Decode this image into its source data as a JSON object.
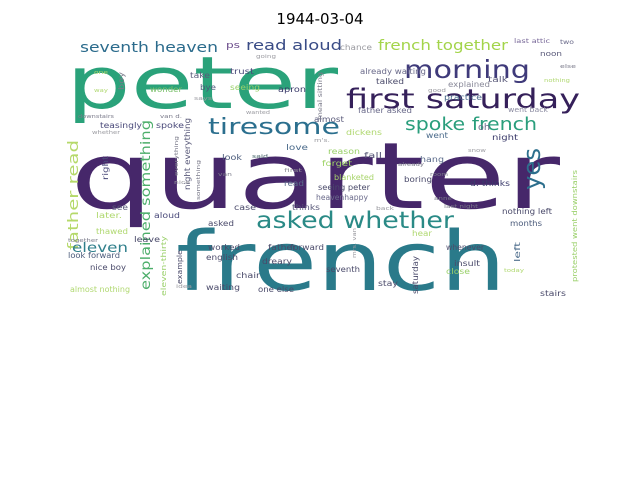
{
  "title": "1944-03-04",
  "words": [
    {
      "text": "quarter",
      "color": "#46276a"
    },
    {
      "text": "peter",
      "color": "#2aa27a"
    },
    {
      "text": "french",
      "color": "#2a7a8a"
    },
    {
      "text": "first saturday",
      "color": "#35205a"
    },
    {
      "text": "morning",
      "color": "#3f3a7a"
    },
    {
      "text": "tiresome",
      "color": "#2b6f8e"
    },
    {
      "text": "spoke french",
      "color": "#2a9e7c"
    },
    {
      "text": "asked whether",
      "color": "#2a8a86"
    },
    {
      "text": "said",
      "color": "#2b9a78"
    },
    {
      "text": "yes",
      "color": "#2d6f8d"
    },
    {
      "text": "seventh heaven",
      "color": "#2b6b8c"
    },
    {
      "text": "read aloud",
      "color": "#3a4c86"
    },
    {
      "text": "french together",
      "color": "#a3d44a"
    },
    {
      "text": "father read",
      "color": "#b5d96a"
    },
    {
      "text": "explained something",
      "color": "#4cae6a"
    },
    {
      "text": "eleven",
      "color": "#2f7f8b"
    },
    {
      "text": "ps",
      "color": "#6a4a8a"
    },
    {
      "text": "chance",
      "color": "#9a9aa0"
    },
    {
      "text": "last attic",
      "color": "#7a6a9a"
    },
    {
      "text": "two",
      "color": "#6a6a8a"
    },
    {
      "text": "noon",
      "color": "#5a5a7a"
    },
    {
      "text": "explained",
      "color": "#8a8a9a"
    },
    {
      "text": "boy",
      "color": "#7a7a8a"
    },
    {
      "text": "take",
      "color": "#5a5a7a"
    },
    {
      "text": "bye",
      "color": "#4a5a7a"
    },
    {
      "text": "trust",
      "color": "#4a4a7a"
    },
    {
      "text": "seeing",
      "color": "#9ad06a"
    },
    {
      "text": "apron",
      "color": "#3a3a6a"
    },
    {
      "text": "wonder",
      "color": "#7ac06a"
    },
    {
      "text": "already waiting",
      "color": "#6a6a8a"
    },
    {
      "text": "talked",
      "color": "#4a4a6a"
    },
    {
      "text": "practice",
      "color": "#4a6a8a"
    },
    {
      "text": "talk",
      "color": "#5a5a7a"
    },
    {
      "text": "father asked",
      "color": "#6a6a8a"
    },
    {
      "text": "went back",
      "color": "#8a8aa0"
    },
    {
      "text": "almost",
      "color": "#5a5a7a"
    },
    {
      "text": "dickens",
      "color": "#b0d870"
    },
    {
      "text": "went",
      "color": "#4a6a8a"
    },
    {
      "text": "night",
      "color": "#3a3a6a"
    },
    {
      "text": "oh",
      "color": "#6a6a8a"
    },
    {
      "text": "teasingly",
      "color": "#4a4a7a"
    },
    {
      "text": "love",
      "color": "#4a6a8a"
    },
    {
      "text": "reason",
      "color": "#9ad06a"
    },
    {
      "text": "fall",
      "color": "#5a5a7a"
    },
    {
      "text": "hang",
      "color": "#5a6a8a"
    },
    {
      "text": "forget",
      "color": "#a0d468"
    },
    {
      "text": "look",
      "color": "#4a5a7a"
    },
    {
      "text": "spoke",
      "color": "#4a4a7a"
    },
    {
      "text": "right",
      "color": "#4a4a7a"
    },
    {
      "text": "night everything",
      "color": "#5a5a7a"
    },
    {
      "text": "seeing peter",
      "color": "#4a4a6a"
    },
    {
      "text": "blanketed",
      "color": "#a8d46a"
    },
    {
      "text": "d. thinks",
      "color": "#3a3a6a"
    },
    {
      "text": "boring",
      "color": "#4a4a6a"
    },
    {
      "text": "read",
      "color": "#5a6a8a"
    },
    {
      "text": "heavenhappy",
      "color": "#6a6a8a"
    },
    {
      "text": "thinks",
      "color": "#5a5a7a"
    },
    {
      "text": "see",
      "color": "#5a5a7a"
    },
    {
      "text": "later.",
      "color": "#b0d870"
    },
    {
      "text": "aloud",
      "color": "#4a4a7a"
    },
    {
      "text": "case",
      "color": "#4a4a6a"
    },
    {
      "text": "nothing left",
      "color": "#4a4a6a"
    },
    {
      "text": "thawed",
      "color": "#b0d870"
    },
    {
      "text": "leave",
      "color": "#4a4a6a"
    },
    {
      "text": "asked",
      "color": "#4a4a6a"
    },
    {
      "text": "hear",
      "color": "#b0d870"
    },
    {
      "text": "left",
      "color": "#4a6a8a"
    },
    {
      "text": "months",
      "color": "#4a5a7a"
    },
    {
      "text": "protested went downstairs",
      "color": "#9ad06a"
    },
    {
      "text": "worked",
      "color": "#4a4a6a"
    },
    {
      "text": "father",
      "color": "#4a4a6a"
    },
    {
      "text": "whenever",
      "color": "#4a4a6a"
    },
    {
      "text": "look forward",
      "color": "#4a5a7a"
    },
    {
      "text": "nice boy",
      "color": "#4a4a6a"
    },
    {
      "text": "english",
      "color": "#4a4a6a"
    },
    {
      "text": "dreary",
      "color": "#4a4a6a"
    },
    {
      "text": "forward",
      "color": "#4a4a6a"
    },
    {
      "text": "insult",
      "color": "#4a4a6a"
    },
    {
      "text": "seventh",
      "color": "#4a4a6a"
    },
    {
      "text": "chair",
      "color": "#4a4a6a"
    },
    {
      "text": "close",
      "color": "#9ad06a"
    },
    {
      "text": "stay",
      "color": "#4a4a6a"
    },
    {
      "text": "waiting",
      "color": "#4a4a6a"
    },
    {
      "text": "one else",
      "color": "#4a4a6a"
    },
    {
      "text": "saturday",
      "color": "#4a4a6a"
    },
    {
      "text": "stairs",
      "color": "#4a4a6a"
    },
    {
      "text": "almost nothing",
      "color": "#b0d870"
    },
    {
      "text": "eleven-thirty",
      "color": "#9ad06a"
    },
    {
      "text": "example",
      "color": "#4a4a6a"
    },
    {
      "text": "meal sitting",
      "color": "#7a7a8a"
    },
    {
      "text": "everything",
      "color": "#7a7a8a"
    },
    {
      "text": "something",
      "color": "#7a7a8a"
    },
    {
      "text": "whether",
      "color": "#9a9aa0"
    },
    {
      "text": "downstairs",
      "color": "#7a7a8a"
    },
    {
      "text": "together",
      "color": "#7a7a8a"
    },
    {
      "text": "going",
      "color": "#9a9aa0"
    },
    {
      "text": "good",
      "color": "#9a9aa0"
    },
    {
      "text": "says",
      "color": "#9a9aa0"
    },
    {
      "text": "wanted",
      "color": "#9a9aa0"
    },
    {
      "text": "snow",
      "color": "#9a9aa0"
    },
    {
      "text": "room",
      "color": "#7a7a8a"
    },
    {
      "text": "anne",
      "color": "#7a7a8a"
    },
    {
      "text": "last night",
      "color": "#7a7a8a"
    },
    {
      "text": "first",
      "color": "#9a9aa0"
    },
    {
      "text": "back",
      "color": "#9a9aa0"
    },
    {
      "text": "nice",
      "color": "#9a9aa0"
    },
    {
      "text": "idea",
      "color": "#9a9aa0"
    },
    {
      "text": "today",
      "color": "#b0d870"
    },
    {
      "text": "else",
      "color": "#7a7a8a"
    },
    {
      "text": "nothing",
      "color": "#b0d870"
    },
    {
      "text": "one",
      "color": "#b0d870"
    },
    {
      "text": "way",
      "color": "#b0d870"
    },
    {
      "text": "van d.",
      "color": "#7a7a8a"
    },
    {
      "text": "van",
      "color": "#7a7a8a"
    },
    {
      "text": "said",
      "color": "#7a7a8a"
    },
    {
      "text": "already",
      "color": "#7a7a8a"
    },
    {
      "text": "mrs. van",
      "color": "#9a9aa0"
    },
    {
      "text": "m's.",
      "color": "#9a9aa0"
    }
  ]
}
